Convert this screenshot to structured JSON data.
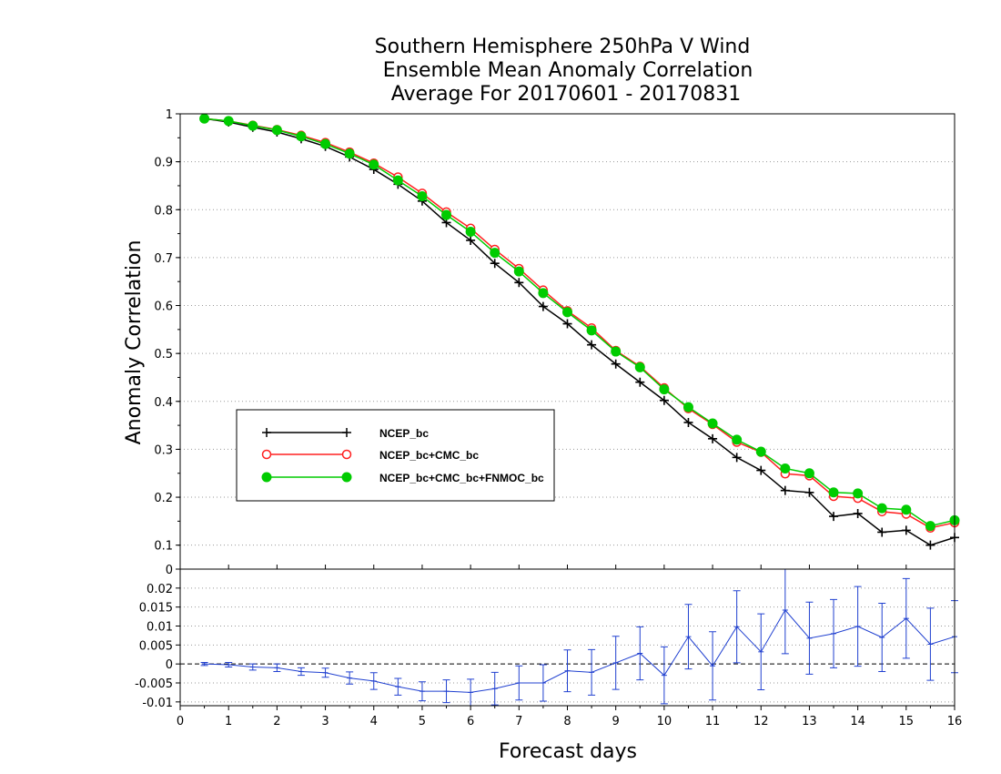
{
  "title": {
    "line1": "Southern Hemisphere 250hPa V Wind",
    "line2": "Ensemble Mean Anomaly Correlation",
    "line3": "Average For 20170601 - 20170831"
  },
  "colors": {
    "ncep": "#000000",
    "cmc": "#ff2020",
    "fnmoc": "#00cc00",
    "diff": "#2040d0",
    "grid": "#999999"
  },
  "chart_data": [
    {
      "type": "line",
      "xlabel": "Forecast days",
      "ylabel": "Anomaly Correlation",
      "xlim": [
        0,
        16
      ],
      "ylim": [
        0.05,
        1
      ],
      "grid": true,
      "legend_position": "center-left",
      "x_ticks": [
        "0",
        "1",
        "2",
        "3",
        "4",
        "5",
        "6",
        "7",
        "8",
        "9",
        "10",
        "11",
        "12",
        "13",
        "14",
        "15",
        "16"
      ],
      "y_ticks": [
        "0.1",
        "0.2",
        "0.3",
        "0.4",
        "0.5",
        "0.6",
        "0.7",
        "0.8",
        "0.9",
        "1"
      ],
      "x": [
        0.5,
        1,
        1.5,
        2,
        2.5,
        3,
        3.5,
        4,
        4.5,
        5,
        5.5,
        6,
        6.5,
        7,
        7.5,
        8,
        8.5,
        9,
        9.5,
        10,
        10.5,
        11,
        11.5,
        12,
        12.5,
        13,
        13.5,
        14,
        14.5,
        15,
        15.5,
        16
      ],
      "series": [
        {
          "name": "NCEP_bc",
          "marker": "plus",
          "values": [
            0.99,
            0.983,
            0.972,
            0.962,
            0.948,
            0.932,
            0.91,
            0.884,
            0.853,
            0.818,
            0.773,
            0.736,
            0.688,
            0.648,
            0.598,
            0.562,
            0.518,
            0.478,
            0.44,
            0.402,
            0.356,
            0.322,
            0.283,
            0.256,
            0.214,
            0.21,
            0.16,
            0.166,
            0.127,
            0.131,
            0.1,
            0.116
          ]
        },
        {
          "name": "NCEP_bc+CMC_bc",
          "marker": "open-circle",
          "values": [
            0.99,
            0.985,
            0.976,
            0.967,
            0.955,
            0.94,
            0.92,
            0.897,
            0.868,
            0.834,
            0.795,
            0.761,
            0.717,
            0.677,
            0.632,
            0.589,
            0.553,
            0.506,
            0.473,
            0.428,
            0.385,
            0.352,
            0.315,
            0.294,
            0.249,
            0.245,
            0.202,
            0.198,
            0.17,
            0.165,
            0.136,
            0.147
          ]
        },
        {
          "name": "NCEP_bc+CMC_bc+FNMOC_bc",
          "marker": "filled-circle",
          "values": [
            0.99,
            0.985,
            0.975,
            0.966,
            0.953,
            0.937,
            0.917,
            0.894,
            0.861,
            0.828,
            0.789,
            0.754,
            0.71,
            0.671,
            0.626,
            0.586,
            0.548,
            0.504,
            0.471,
            0.425,
            0.388,
            0.354,
            0.32,
            0.295,
            0.26,
            0.25,
            0.21,
            0.208,
            0.177,
            0.174,
            0.14,
            0.152
          ]
        }
      ]
    },
    {
      "type": "line",
      "xlim": [
        0,
        16
      ],
      "ylim": [
        -0.011,
        0.025
      ],
      "grid": true,
      "y_ticks": [
        "0.02",
        "0.015",
        "0.01",
        "0.005",
        "0",
        "-0.005",
        "-0.01"
      ],
      "top_label": "0",
      "x": [
        0.5,
        1,
        1.5,
        2,
        2.5,
        3,
        3.5,
        4,
        4.5,
        5,
        5.5,
        6,
        6.5,
        7,
        7.5,
        8,
        8.5,
        9,
        9.5,
        10,
        10.5,
        11,
        11.5,
        12,
        12.5,
        13,
        13.5,
        14,
        14.5,
        15,
        15.5,
        16
      ],
      "series": [
        {
          "values": [
            0,
            -0.0002,
            -0.0008,
            -0.001,
            -0.002,
            -0.0023,
            -0.0037,
            -0.0045,
            -0.006,
            -0.0072,
            -0.0072,
            -0.0075,
            -0.0065,
            -0.005,
            -0.005,
            -0.0018,
            -0.0022,
            0.0003,
            0.0028,
            -0.003,
            0.0072,
            -0.0005,
            0.0098,
            0.0032,
            0.0142,
            0.0068,
            0.008,
            0.0099,
            0.007,
            0.012,
            0.0052,
            0.0072
          ],
          "error": [
            0.0004,
            0.0006,
            0.0008,
            0.001,
            0.001,
            0.0012,
            0.0016,
            0.0022,
            0.0022,
            0.0025,
            0.003,
            0.0035,
            0.0043,
            0.0045,
            0.0048,
            0.0055,
            0.006,
            0.007,
            0.007,
            0.0075,
            0.0085,
            0.009,
            0.0095,
            0.01,
            0.0115,
            0.0095,
            0.009,
            0.0105,
            0.009,
            0.0105,
            0.0095,
            0.0095
          ]
        }
      ]
    }
  ]
}
